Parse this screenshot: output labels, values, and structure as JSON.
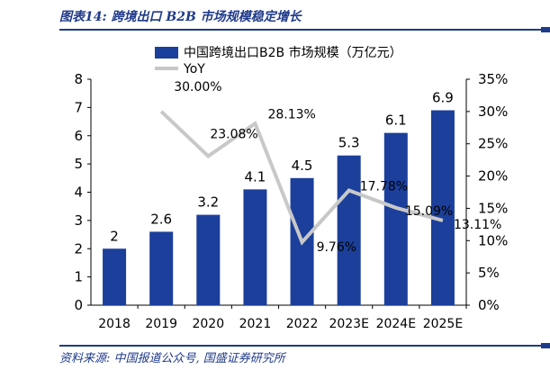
{
  "figure_title": "图表14:  跨境出口 B2B 市场规模稳定增长",
  "source": "资料来源:  中国报道公众号,  国盛证券研究所",
  "colors": {
    "bar": "#1b3f9a",
    "line": "#c8c8c8",
    "title": "#1f3a8a"
  },
  "chart_data": {
    "type": "bar",
    "categories": [
      "2018",
      "2019",
      "2020",
      "2021",
      "2022",
      "2023E",
      "2024E",
      "2025E"
    ],
    "series": [
      {
        "name": "中国跨境出口B2B 市场规模（万亿元）",
        "type": "bar",
        "axis": "left",
        "values": [
          2,
          2.6,
          3.2,
          4.1,
          4.5,
          5.3,
          6.1,
          6.9
        ],
        "labels": [
          "2",
          "2.6",
          "3.2",
          "4.1",
          "4.5",
          "5.3",
          "6.1",
          "6.9"
        ]
      },
      {
        "name": "YoY",
        "type": "line",
        "axis": "right",
        "values": [
          null,
          30.0,
          23.08,
          28.13,
          9.76,
          17.78,
          15.09,
          13.11
        ],
        "labels": [
          "",
          "30.00%",
          "23.08%",
          "28.13%",
          "9.76%",
          "17.78%",
          "15.09%",
          "13.11%"
        ]
      }
    ],
    "y_left": {
      "min": 0,
      "max": 8,
      "ticks": [
        "0",
        "1",
        "2",
        "3",
        "4",
        "5",
        "6",
        "7",
        "8"
      ]
    },
    "y_right": {
      "min": 0,
      "max": 35,
      "ticks": [
        "0%",
        "5%",
        "10%",
        "15%",
        "20%",
        "25%",
        "30%",
        "35%"
      ]
    },
    "grid": false,
    "legend_position": "top"
  }
}
